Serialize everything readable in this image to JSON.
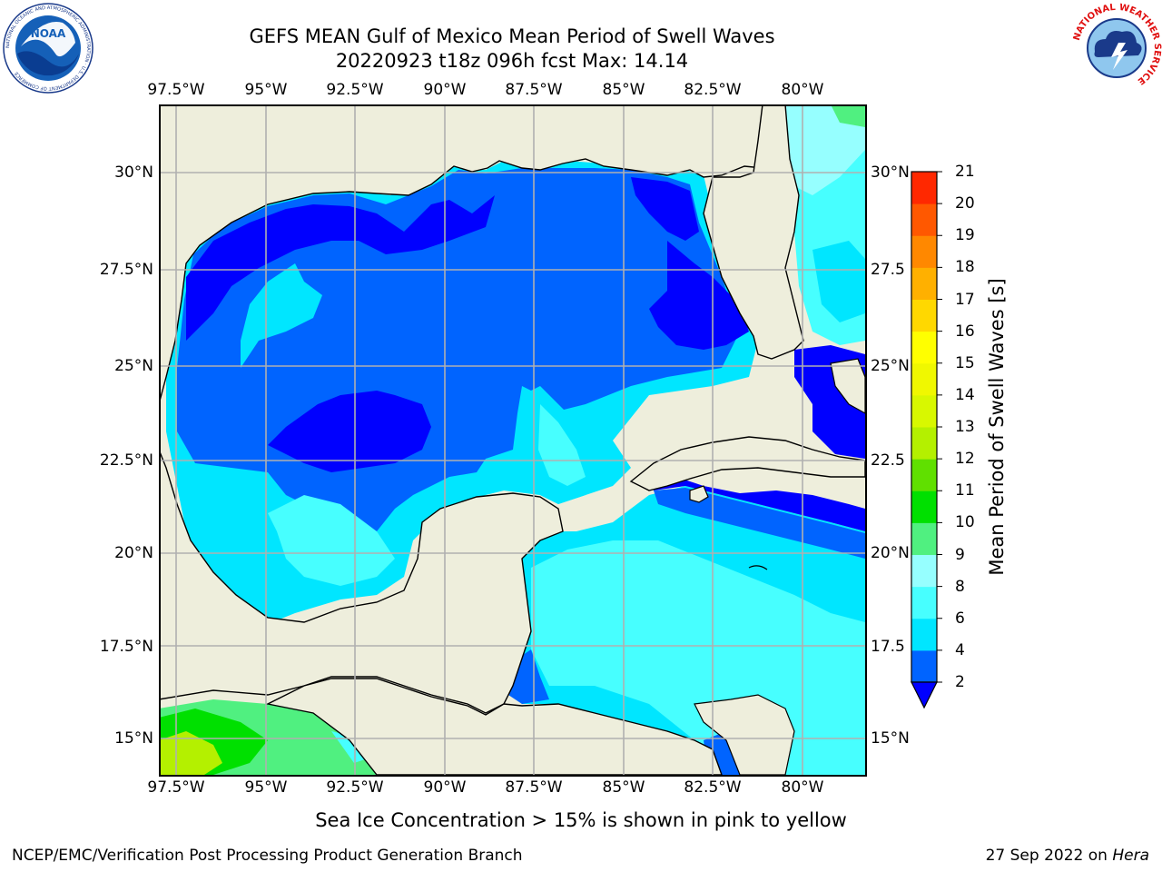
{
  "title": {
    "line1": "GEFS MEAN Gulf of Mexico Mean Period of Swell Waves",
    "line2": "20220923 t18z 096h fcst   Max: 14.14"
  },
  "axes": {
    "lon_labels": [
      "97.5°W",
      "95°W",
      "92.5°W",
      "90°W",
      "87.5°W",
      "85°W",
      "82.5°W",
      "80°W"
    ],
    "lat_labels_left": [
      "30°N",
      "27.5°N",
      "25°N",
      "22.5°N",
      "20°N",
      "17.5°N",
      "15°N"
    ],
    "lat_labels_right": [
      "30°N",
      "27.5",
      "25°N",
      "22.5",
      "20°N",
      "17.5",
      "15°N"
    ]
  },
  "colorbar": {
    "title": "Mean Period of Swell Waves [s]",
    "ticks": [
      "2",
      "4",
      "6",
      "8",
      "9",
      "10",
      "11",
      "12",
      "13",
      "14",
      "15",
      "16",
      "17",
      "18",
      "19",
      "20",
      "21"
    ],
    "colors": [
      "#0064ff",
      "#00e6ff",
      "#47ffff",
      "#96ffff",
      "#50f080",
      "#00e000",
      "#60e000",
      "#b4f000",
      "#d8f800",
      "#f0f800",
      "#ffff00",
      "#ffd800",
      "#ffb000",
      "#ff8800",
      "#ff5800",
      "#ff2800",
      "#ff0000"
    ],
    "under_color": "#0000ff"
  },
  "map": {
    "land_color": "#eeeedc",
    "grid_color": "#b0b0b0",
    "palette": {
      "p2": "#0000ff",
      "p4": "#0064ff",
      "p6": "#00e6ff",
      "p8": "#47ffff",
      "p9": "#96ffff",
      "p10": "#50f080",
      "p11": "#00e000",
      "p12": "#60e000",
      "p13": "#b4f000",
      "p14": "#d8f800"
    }
  },
  "footer": {
    "sea_ice_note": "Sea Ice Concentration > 15% is shown in pink to yellow",
    "credit": "NCEP/EMC/Verification Post Processing Product Generation Branch",
    "date_text": "27 Sep 2022 on ",
    "date_host": "Hera"
  },
  "logos": {
    "noaa_text": "NOAA",
    "noaa_ring_text": "NATIONAL OCEANIC AND ATMOSPHERIC ADMINISTRATION · U.S. DEPARTMENT OF COMMERCE",
    "nws_ring_text": "NATIONAL WEATHER SERVICE"
  }
}
